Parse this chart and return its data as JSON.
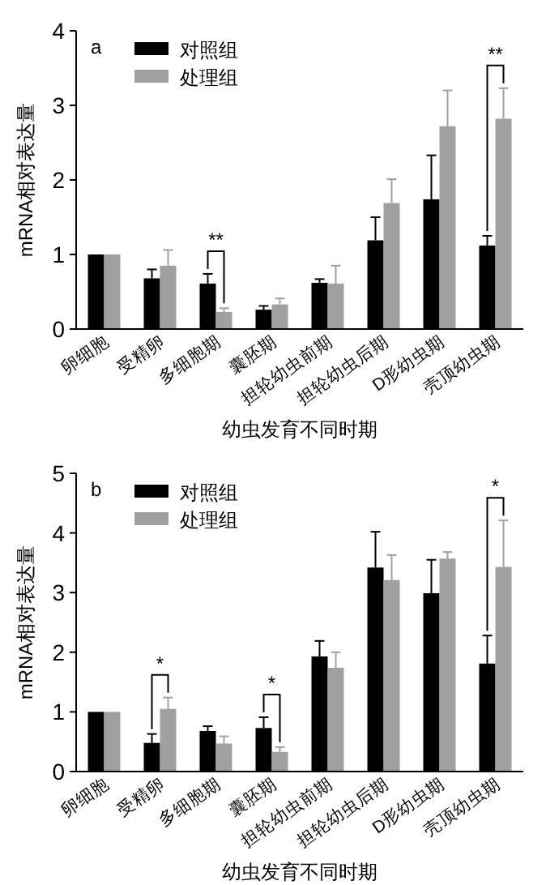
{
  "chart_data": [
    {
      "type": "bar",
      "xlabel": "幼虫发育不同时期",
      "ylabel": "mRNA相对表达量",
      "categories": [
        "卵细胞",
        "受精卵",
        "多细胞期",
        "囊胚期",
        "担轮幼虫前期",
        "担轮幼虫后期",
        "D形幼虫期",
        "壳顶幼虫期"
      ],
      "ylim": [
        0,
        4
      ],
      "yticks": [
        0,
        1,
        2,
        3,
        4
      ],
      "legend": "top left",
      "grid": false,
      "series": [
        {
          "name": "对照组",
          "color": "#000000",
          "values": [
            1,
            0.68,
            0.61,
            0.26,
            0.62,
            1.19,
            1.74,
            1.12
          ],
          "errors": [
            null,
            [
              0.68,
              0.8
            ],
            [
              0.61,
              0.74
            ],
            [
              0.26,
              0.31
            ],
            [
              0.62,
              0.67
            ],
            [
              1.19,
              1.5
            ],
            [
              1.74,
              2.33
            ],
            [
              1.12,
              1.25
            ]
          ]
        },
        {
          "name": "处理组",
          "color": "#a0a0a0",
          "values": [
            1,
            0.85,
            0.23,
            0.33,
            0.61,
            1.69,
            2.72,
            2.82
          ],
          "errors": [
            null,
            [
              0.85,
              1.06
            ],
            [
              0.23,
              0.28
            ],
            [
              0.33,
              0.41
            ],
            [
              0.61,
              0.85
            ],
            [
              1.69,
              2.01
            ],
            [
              2.72,
              3.2
            ],
            [
              2.82,
              3.23
            ]
          ]
        }
      ],
      "annotations": [
        "a",
        {
          "text": "**",
          "x": "多细胞期",
          "y": 0.74
        },
        {
          "text": "**",
          "x": "壳顶幼虫期",
          "y": 3.23
        }
      ]
    },
    {
      "type": "bar",
      "xlabel": "幼虫发育不同时期",
      "ylabel": "mRNA相对表达量",
      "categories": [
        "卵细胞",
        "受精卵",
        "多细胞期",
        "囊胚期",
        "担轮幼虫前期",
        "担轮幼虫后期",
        "D形幼虫期",
        "壳顶幼虫期"
      ],
      "ylim": [
        0,
        5
      ],
      "yticks": [
        0,
        1,
        2,
        3,
        4,
        5
      ],
      "legend": "top left",
      "grid": false,
      "series": [
        {
          "name": "对照组",
          "color": "#000000",
          "values": [
            1,
            0.48,
            0.68,
            0.73,
            1.93,
            3.42,
            2.99,
            1.81
          ],
          "errors": [
            null,
            [
              0.48,
              0.63
            ],
            [
              0.68,
              0.76
            ],
            [
              0.73,
              0.91
            ],
            [
              1.93,
              2.19
            ],
            [
              3.42,
              4.02
            ],
            [
              2.99,
              3.55
            ],
            [
              1.81,
              2.28
            ]
          ]
        },
        {
          "name": "处理组",
          "color": "#a0a0a0",
          "values": [
            1,
            1.05,
            0.47,
            0.33,
            1.74,
            3.21,
            3.57,
            3.43
          ],
          "errors": [
            null,
            [
              1.05,
              1.24
            ],
            [
              0.47,
              0.59
            ],
            [
              0.33,
              0.41
            ],
            [
              1.74,
              2.0
            ],
            [
              3.21,
              3.63
            ],
            [
              3.57,
              3.68
            ],
            [
              3.43,
              4.21
            ]
          ]
        }
      ],
      "annotations": [
        "b",
        {
          "text": "*",
          "x": "受精卵",
          "y": 1.24
        },
        {
          "text": "*",
          "x": "囊胚期",
          "y": 0.91
        },
        {
          "text": "*",
          "x": "壳顶幼虫期",
          "y": 4.21
        }
      ]
    }
  ]
}
